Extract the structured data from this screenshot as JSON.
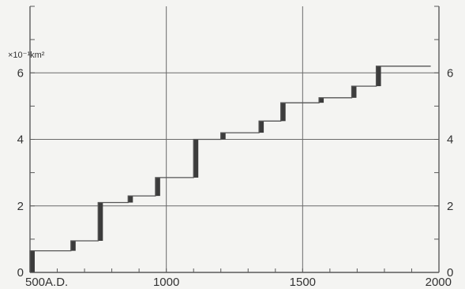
{
  "chart_data": {
    "type": "line",
    "step": true,
    "title": "",
    "xlabel": "",
    "ylabel": "×10⁻¹km²",
    "xlim": [
      500,
      2000
    ],
    "ylim": [
      0,
      8
    ],
    "grid": true,
    "x_ticks": [
      {
        "value": 500,
        "label": "500A.D."
      },
      {
        "value": 1000,
        "label": "1000"
      },
      {
        "value": 1500,
        "label": "1500"
      },
      {
        "value": 2000,
        "label": "2000"
      }
    ],
    "y_ticks_left": [
      {
        "value": 0,
        "label": "0"
      },
      {
        "value": 2,
        "label": "2"
      },
      {
        "value": 4,
        "label": "4"
      },
      {
        "value": 6,
        "label": "6"
      }
    ],
    "y_ticks_right": [
      {
        "value": 0,
        "label": "0"
      },
      {
        "value": 2,
        "label": "2"
      },
      {
        "value": 4,
        "label": "4"
      },
      {
        "value": 6,
        "label": "6"
      }
    ],
    "series": [
      {
        "x": [
          500,
          500,
          650,
          650,
          750,
          750,
          860,
          860,
          960,
          960,
          1100,
          1100,
          1200,
          1200,
          1340,
          1340,
          1420,
          1420,
          1560,
          1560,
          1680,
          1680,
          1770,
          1770,
          1970
        ],
        "y": [
          0,
          0.65,
          0.65,
          0.95,
          0.95,
          2.1,
          2.1,
          2.3,
          2.3,
          2.85,
          2.85,
          4.0,
          4.0,
          4.2,
          4.2,
          4.55,
          4.55,
          5.1,
          5.1,
          5.25,
          5.25,
          5.6,
          5.6,
          6.2,
          6.2
        ]
      }
    ],
    "increments": [
      {
        "x": 500,
        "from": 0,
        "to": 0.65
      },
      {
        "x": 650,
        "from": 0.65,
        "to": 0.95
      },
      {
        "x": 750,
        "from": 0.95,
        "to": 2.1
      },
      {
        "x": 860,
        "from": 2.1,
        "to": 2.3
      },
      {
        "x": 960,
        "from": 2.3,
        "to": 2.85
      },
      {
        "x": 1100,
        "from": 2.85,
        "to": 4.0
      },
      {
        "x": 1200,
        "from": 4.0,
        "to": 4.2
      },
      {
        "x": 1340,
        "from": 4.2,
        "to": 4.55
      },
      {
        "x": 1420,
        "from": 4.55,
        "to": 5.1
      },
      {
        "x": 1560,
        "from": 5.1,
        "to": 5.25
      },
      {
        "x": 1680,
        "from": 5.25,
        "to": 5.6
      },
      {
        "x": 1770,
        "from": 5.6,
        "to": 6.2
      }
    ],
    "colors": {
      "line": "#555555",
      "increment_bar": "#3c3c3c",
      "grid": "#6a6a6a",
      "frame": "#5a5a5a",
      "background": "#f4f4f2"
    }
  }
}
